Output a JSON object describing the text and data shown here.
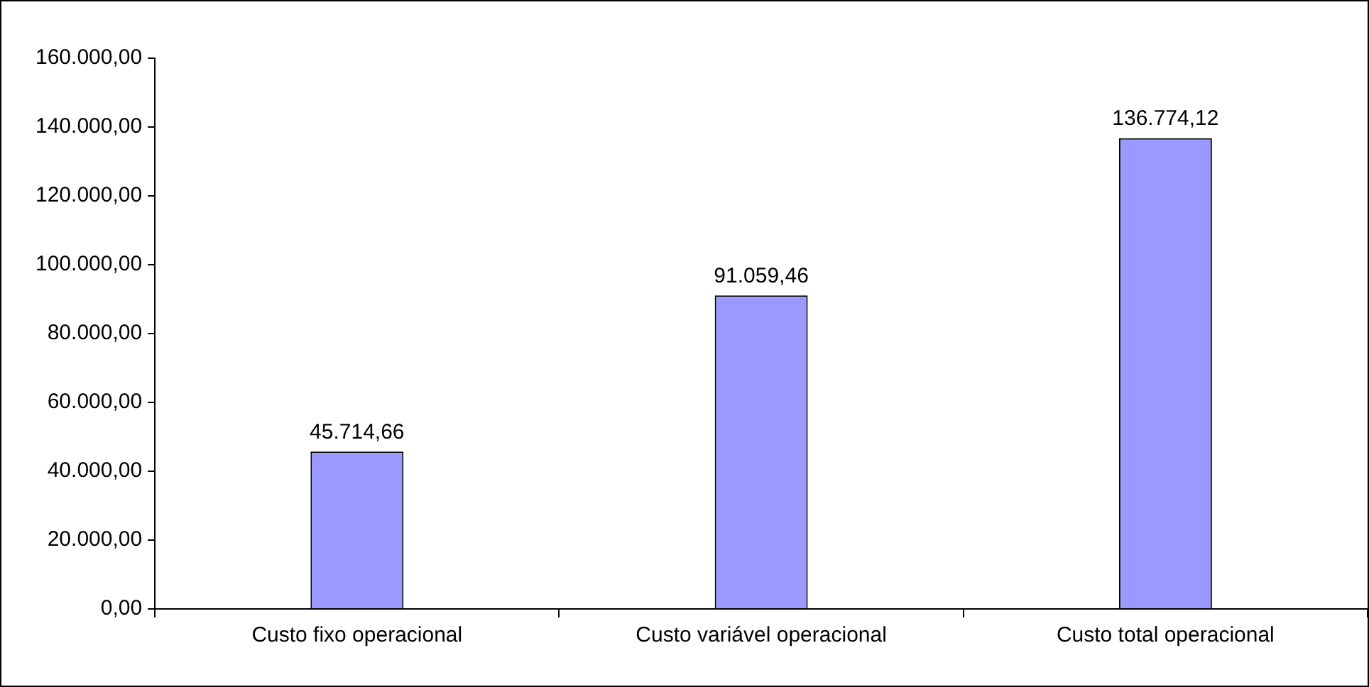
{
  "chart_data": {
    "type": "bar",
    "categories": [
      "Custo fixo operacional",
      "Custo variável operacional",
      "Custo total operacional"
    ],
    "values": [
      45714.66,
      91059.46,
      136774.12
    ],
    "value_labels": [
      "45.714,66",
      "91.059,46",
      "136.774,12"
    ],
    "color": "#9999ff",
    "ylim": [
      0,
      160000
    ],
    "yticks": [
      {
        "value": 0,
        "label": "0,00"
      },
      {
        "value": 20000,
        "label": "20.000,00"
      },
      {
        "value": 40000,
        "label": "40.000,00"
      },
      {
        "value": 60000,
        "label": "60.000,00"
      },
      {
        "value": 80000,
        "label": "80.000,00"
      },
      {
        "value": 100000,
        "label": "100.000,00"
      },
      {
        "value": 120000,
        "label": "120.000,00"
      },
      {
        "value": 140000,
        "label": "140.000,00"
      },
      {
        "value": 160000,
        "label": "160.000,00"
      }
    ],
    "grid": false,
    "legend": false
  }
}
